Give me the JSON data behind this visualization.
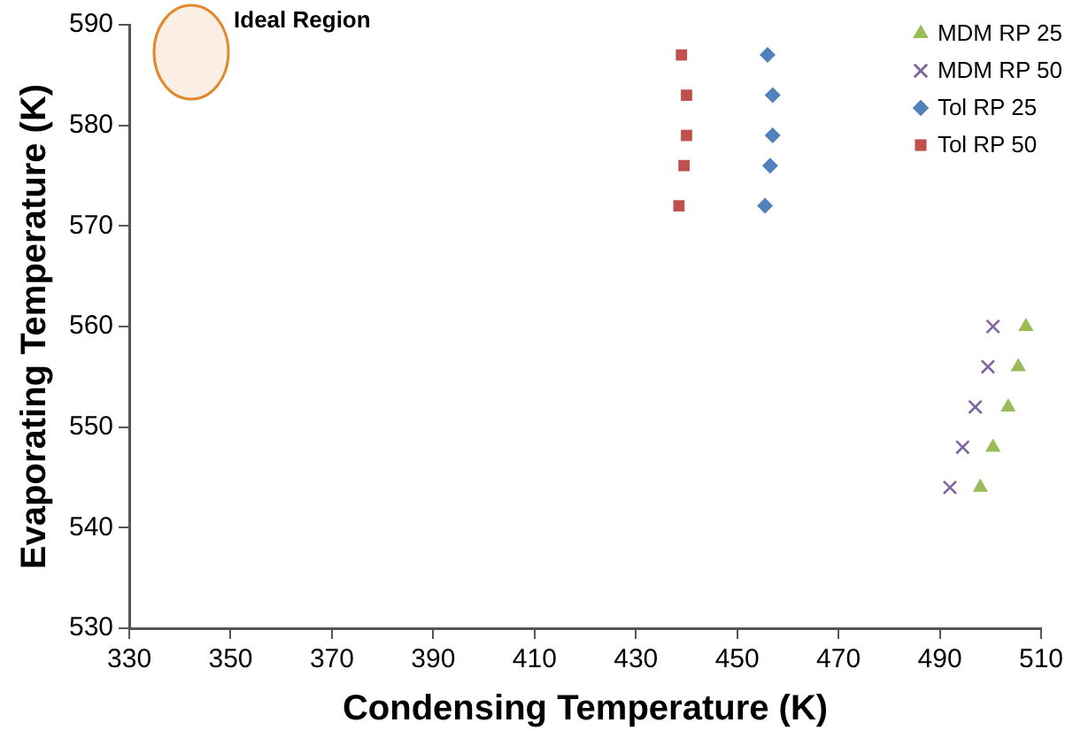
{
  "chart_data": {
    "type": "scatter",
    "xlabel": "Condensing Temperature (K)",
    "ylabel": "Evaporating Temperature (K)",
    "xlim": [
      330,
      510
    ],
    "xticks": [
      330,
      350,
      370,
      390,
      410,
      430,
      450,
      470,
      490,
      510
    ],
    "ylim": [
      530,
      590
    ],
    "yticks": [
      530,
      540,
      550,
      560,
      570,
      580,
      590
    ],
    "grid": false,
    "legend": "top right",
    "annotations": [
      "Ideal Region"
    ],
    "series": [
      {
        "name": "MDM RP 25",
        "color": "#9bbb59",
        "marker": "triangle",
        "x": [
          507,
          505.5,
          503.5,
          500.5,
          498
        ],
        "values": [
          560,
          556,
          552,
          548,
          544
        ]
      },
      {
        "name": "MDM RP 50",
        "color": "#8064a2",
        "marker": "cross",
        "x": [
          500.5,
          499.5,
          497,
          494.5,
          492
        ],
        "values": [
          560,
          556,
          552,
          548,
          544
        ]
      },
      {
        "name": "Tol RP 25",
        "color": "#4f81bd",
        "marker": "diamond",
        "x": [
          456,
          457,
          457,
          456.5,
          455.5
        ],
        "values": [
          587,
          583,
          579,
          576,
          572
        ]
      },
      {
        "name": "Tol RP 50",
        "color": "#c0504d",
        "marker": "square",
        "x": [
          439,
          440,
          440,
          439.5,
          438.5
        ],
        "values": [
          587,
          583,
          579,
          576,
          572
        ]
      }
    ]
  }
}
